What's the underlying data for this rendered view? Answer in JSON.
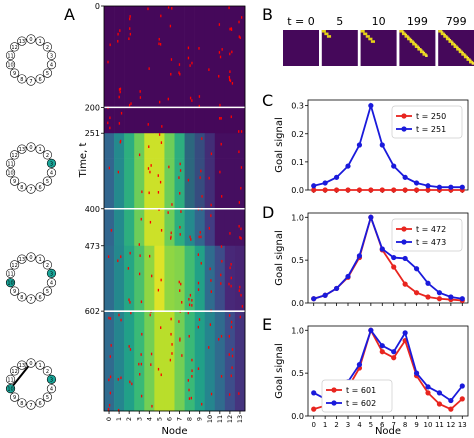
{
  "panels": {
    "A": "A",
    "B": "B",
    "C": "C",
    "D": "D",
    "E": "E"
  },
  "ring_labels": [
    "0",
    "1",
    "2",
    "3",
    "4",
    "5",
    "6",
    "7",
    "8",
    "9",
    "10",
    "11",
    "12",
    "13"
  ],
  "ring_highlights": [
    {
      "name": "ring-1",
      "teal": []
    },
    {
      "name": "ring-2",
      "teal": [
        3
      ]
    },
    {
      "name": "ring-3",
      "teal": [
        3,
        10
      ]
    },
    {
      "name": "ring-4",
      "teal": [
        3,
        10
      ],
      "chord": [
        0,
        10
      ]
    }
  ],
  "chart_data": [
    {
      "type": "heatmap",
      "panel": "A",
      "ylabel": "Time, t",
      "xlabel": "Node",
      "xcategories": [
        "0",
        "1",
        "2",
        "3",
        "4",
        "5",
        "6",
        "7",
        "8",
        "9",
        "10",
        "11",
        "12",
        "13"
      ],
      "yticks": [
        0,
        200,
        251,
        400,
        473,
        602
      ],
      "ylim": [
        0,
        799
      ],
      "segment_lines": [
        200,
        400,
        602
      ],
      "colormap": "viridis",
      "event_marker_color": "#ff0000"
    },
    {
      "type": "heatmap",
      "panel": "B",
      "title_prefix": "t = ",
      "snapshots": [
        "0",
        "5",
        "10",
        "199",
        "799"
      ]
    },
    {
      "type": "line",
      "panel": "C",
      "ylabel": "Goal signal",
      "x": [
        0,
        1,
        2,
        3,
        4,
        5,
        6,
        7,
        8,
        9,
        10,
        11,
        12,
        13
      ],
      "ylim": [
        0,
        0.32
      ],
      "yticks": [
        0,
        0.1,
        0.2,
        0.3
      ],
      "xticks": [
        0,
        1,
        2,
        3,
        4,
        5,
        6,
        7,
        8,
        9,
        10,
        11,
        12,
        13
      ],
      "series": [
        {
          "name": "t = 250",
          "color": "#e8251f",
          "values": [
            0,
            0,
            0,
            0,
            0,
            0,
            0,
            0,
            0,
            0,
            0,
            0,
            0,
            0
          ]
        },
        {
          "name": "t = 251",
          "color": "#1a1adb",
          "values": [
            0.015,
            0.025,
            0.045,
            0.085,
            0.16,
            0.3,
            0.16,
            0.085,
            0.045,
            0.025,
            0.015,
            0.01,
            0.01,
            0.01
          ]
        }
      ],
      "legend": "top-right"
    },
    {
      "type": "line",
      "panel": "D",
      "ylabel": "Goal signal",
      "x": [
        0,
        1,
        2,
        3,
        4,
        5,
        6,
        7,
        8,
        9,
        10,
        11,
        12,
        13
      ],
      "ylim": [
        0,
        1.05
      ],
      "yticks": [
        0,
        0.5,
        1.0
      ],
      "xticks": [
        0,
        1,
        2,
        3,
        4,
        5,
        6,
        7,
        8,
        9,
        10,
        11,
        12,
        13
      ],
      "series": [
        {
          "name": "t = 472",
          "color": "#e8251f",
          "values": [
            0.05,
            0.09,
            0.17,
            0.3,
            0.53,
            1.0,
            0.62,
            0.42,
            0.22,
            0.12,
            0.07,
            0.05,
            0.04,
            0.03
          ]
        },
        {
          "name": "t = 473",
          "color": "#1a1adb",
          "values": [
            0.05,
            0.09,
            0.17,
            0.31,
            0.55,
            1.0,
            0.63,
            0.53,
            0.52,
            0.4,
            0.23,
            0.12,
            0.07,
            0.05
          ]
        }
      ],
      "legend": "top-right"
    },
    {
      "type": "line",
      "panel": "E",
      "ylabel": "Goal signal",
      "xlabel": "Node",
      "x": [
        0,
        1,
        2,
        3,
        4,
        5,
        6,
        7,
        8,
        9,
        10,
        11,
        12,
        13
      ],
      "ylim": [
        0,
        1.05
      ],
      "yticks": [
        0,
        0.5,
        1.0
      ],
      "xticks": [
        0,
        1,
        2,
        3,
        4,
        5,
        6,
        7,
        8,
        9,
        10,
        11,
        12,
        13
      ],
      "series": [
        {
          "name": "t = 601",
          "color": "#e8251f",
          "values": [
            0.08,
            0.12,
            0.2,
            0.33,
            0.56,
            1.0,
            0.75,
            0.68,
            0.88,
            0.47,
            0.27,
            0.14,
            0.08,
            0.2
          ]
        },
        {
          "name": "t = 602",
          "color": "#1a1adb",
          "values": [
            0.27,
            0.2,
            0.27,
            0.4,
            0.6,
            1.0,
            0.82,
            0.75,
            0.97,
            0.5,
            0.34,
            0.27,
            0.18,
            0.35
          ]
        }
      ],
      "legend": "bottom-left"
    }
  ]
}
